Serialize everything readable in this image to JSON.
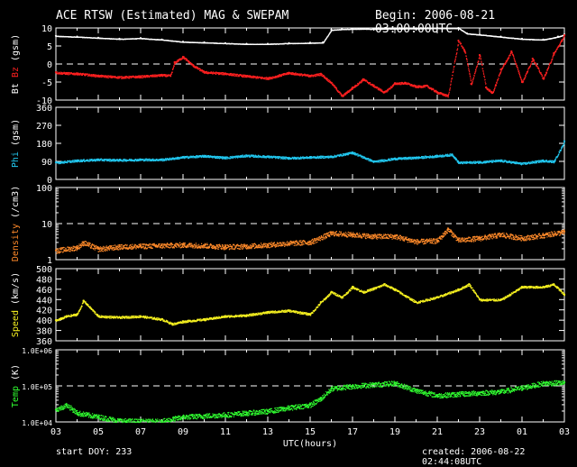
{
  "header": {
    "title": "ACE RTSW (Estimated) MAG & SWEPAM",
    "begin": "Begin: 2006-08-21 03:00:00UTC"
  },
  "footer": {
    "start": "start DOY: 233",
    "created": "created: 2006-08-22 02:44:08UTC"
  },
  "colors": {
    "background": "#000000",
    "axes": "#ffffff",
    "bt": "#ffffff",
    "bz": "#ff2020",
    "phi": "#22c8f0",
    "density": "#ff8a2a",
    "speed": "#f5f020",
    "temp": "#30ff30"
  },
  "chart_data": [
    {
      "type": "scatter",
      "ylabel": "Bt Bz (gsm)",
      "ylabel_parts": [
        "Bt",
        "Bz",
        "(gsm)"
      ],
      "ylim": [
        -10,
        10
      ],
      "yticks": [
        10,
        5,
        0,
        -5,
        -10
      ],
      "yticklabels": [
        "10",
        "5",
        "0",
        "-5",
        "-10"
      ],
      "reference_line": 0,
      "series": [
        {
          "name": "Bt",
          "color": "#ffffff",
          "x": [
            3,
            4,
            5,
            6,
            7,
            8,
            9,
            10,
            11,
            12,
            13,
            14,
            15,
            15.6,
            16,
            16.5,
            17,
            18,
            19,
            20,
            21,
            22,
            22.4,
            23,
            24,
            25,
            26,
            26.7,
            27
          ],
          "y": [
            7.8,
            7.6,
            7.3,
            7.0,
            7.2,
            6.8,
            6.2,
            6.0,
            5.8,
            5.6,
            5.6,
            5.8,
            5.9,
            6.0,
            9.5,
            9.7,
            9.8,
            9.8,
            9.9,
            9.9,
            10.0,
            10.0,
            8.5,
            8.2,
            7.6,
            7.0,
            6.8,
            7.6,
            8.2
          ]
        },
        {
          "name": "Bz",
          "color": "#ff2020",
          "x": [
            3,
            3.5,
            4,
            5,
            6,
            7,
            8,
            8.4,
            8.6,
            9,
            9.5,
            10,
            11,
            12,
            13,
            14,
            15,
            15.5,
            16,
            16.5,
            17,
            17.5,
            18,
            18.5,
            19,
            19.5,
            20,
            20.5,
            21,
            21.5,
            22,
            22.3,
            22.6,
            23,
            23.3,
            23.6,
            24,
            24.5,
            25,
            25.5,
            26,
            26.5,
            27
          ],
          "y": [
            -2.3,
            -2.5,
            -2.6,
            -3.2,
            -3.6,
            -3.4,
            -3.0,
            -3.2,
            0.5,
            2.0,
            -0.5,
            -2.2,
            -2.6,
            -3.3,
            -3.9,
            -2.4,
            -3.2,
            -2.7,
            -5.2,
            -8.8,
            -6.5,
            -4.2,
            -6.0,
            -7.8,
            -5.3,
            -5.2,
            -6.2,
            -6.0,
            -7.8,
            -8.8,
            6.5,
            3.5,
            -5.5,
            2.5,
            -6.5,
            -8.0,
            -1.5,
            3.5,
            -5.0,
            1.5,
            -4.0,
            3.0,
            8.0
          ]
        }
      ]
    },
    {
      "type": "scatter",
      "ylabel": "Phi (gsm)",
      "ylim": [
        0,
        360
      ],
      "yticks": [
        360,
        270,
        180,
        90,
        0
      ],
      "yticklabels": [
        "360",
        "270",
        "180",
        "90",
        "0"
      ],
      "series": [
        {
          "name": "Phi",
          "color": "#22c8f0",
          "x": [
            3,
            4,
            5,
            6,
            7,
            8,
            9,
            10,
            11,
            12,
            13,
            14,
            15,
            16,
            17,
            18,
            19,
            20,
            21,
            21.7,
            22,
            23,
            24,
            25,
            26,
            26.5,
            27
          ],
          "y": [
            85,
            95,
            100,
            98,
            100,
            100,
            112,
            118,
            110,
            120,
            115,
            108,
            112,
            115,
            135,
            90,
            105,
            110,
            118,
            125,
            85,
            88,
            95,
            80,
            95,
            90,
            190
          ]
        }
      ]
    },
    {
      "type": "scatter",
      "ylabel": "Density (/cm3)",
      "log_scale": true,
      "ylim": [
        1,
        100
      ],
      "yticks": [
        100,
        10,
        1
      ],
      "yticklabels": [
        "100",
        "10",
        "1"
      ],
      "reference_line": 10,
      "series": [
        {
          "name": "Density",
          "color": "#ff8a2a",
          "x": [
            3,
            4,
            4.3,
            5,
            6,
            7,
            8,
            9,
            10,
            11,
            12,
            13,
            14,
            15,
            16,
            17,
            18,
            19,
            20,
            21,
            21.5,
            22,
            23,
            24,
            25,
            26,
            27
          ],
          "y": [
            1.8,
            2.2,
            3.0,
            2.0,
            2.3,
            2.4,
            2.5,
            2.6,
            2.5,
            2.3,
            2.4,
            2.6,
            2.9,
            3.1,
            5.5,
            5.0,
            4.5,
            4.5,
            3.2,
            3.4,
            7.0,
            3.5,
            4.0,
            5.0,
            4.0,
            4.8,
            6.0
          ]
        }
      ]
    },
    {
      "type": "scatter",
      "ylabel": "Speed (km/s)",
      "ylim": [
        360,
        500
      ],
      "yticks": [
        500,
        480,
        460,
        440,
        420,
        400,
        380,
        360
      ],
      "yticklabels": [
        "500",
        "480",
        "460",
        "440",
        "420",
        "400",
        "380",
        "360"
      ],
      "series": [
        {
          "name": "Speed",
          "color": "#f5f020",
          "x": [
            3,
            3.5,
            4,
            4.3,
            5,
            6,
            7,
            8,
            8.5,
            9,
            10,
            11,
            12,
            13,
            14,
            15,
            15.5,
            16,
            16.5,
            17,
            17.5,
            18,
            18.5,
            19,
            20,
            21,
            22,
            22.5,
            23,
            24,
            25,
            26,
            26.5,
            27
          ],
          "y": [
            400,
            408,
            412,
            438,
            408,
            406,
            408,
            402,
            393,
            398,
            402,
            408,
            410,
            416,
            419,
            412,
            435,
            455,
            445,
            465,
            455,
            462,
            470,
            460,
            435,
            445,
            460,
            470,
            440,
            440,
            465,
            465,
            470,
            450
          ]
        }
      ]
    },
    {
      "type": "scatter",
      "ylabel": "Temp (K)",
      "log_scale": true,
      "ylim": [
        10000,
        1000000
      ],
      "yticks": [
        1000000,
        100000,
        10000
      ],
      "yticklabels": [
        "1.0E+06",
        "1.0E+05",
        "1.0E+04"
      ],
      "reference_line": 100000,
      "xlabel": "UTC(hours)",
      "xticklabels": [
        "03",
        "05",
        "07",
        "09",
        "11",
        "13",
        "15",
        "17",
        "19",
        "21",
        "23",
        "01",
        "03"
      ],
      "series": [
        {
          "name": "Temp",
          "color": "#30ff30",
          "x": [
            3,
            3.5,
            4,
            5,
            6,
            7,
            8,
            9,
            10,
            11,
            12,
            13,
            14,
            15,
            15.5,
            16,
            17,
            18,
            19,
            20,
            21,
            22,
            23,
            24,
            25,
            26,
            27
          ],
          "y": [
            22000,
            30000,
            18000,
            14000,
            11000,
            10500,
            10500,
            14000,
            15000,
            16000,
            18000,
            20000,
            25000,
            30000,
            45000,
            85000,
            100000,
            110000,
            120000,
            75000,
            55000,
            60000,
            65000,
            70000,
            90000,
            120000,
            125000
          ]
        }
      ]
    }
  ]
}
